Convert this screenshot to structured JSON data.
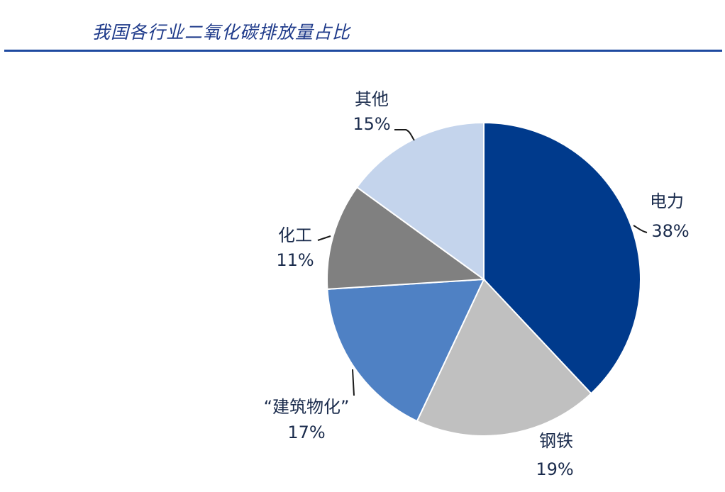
{
  "title": "我国各行业二氧化碳排放量占比",
  "colors": {
    "title": "#1e3a8a",
    "rule": "#1f4aa0",
    "label": "#1a2b4c",
    "leader": "#1a1a1a"
  },
  "chart_data": {
    "type": "pie",
    "title": "我国各行业二氧化碳排放量占比",
    "start_angle_deg": 0,
    "direction": "clockwise",
    "legend": "none",
    "slices": [
      {
        "name": "电力",
        "value": 38,
        "label": "38%",
        "color": "#003a8c"
      },
      {
        "name": "钢铁",
        "value": 19,
        "label": "19%",
        "color": "#c0c0c0"
      },
      {
        "name": "“建筑物化”",
        "value": 17,
        "label": "17%",
        "color": "#4f81c4"
      },
      {
        "name": "化工",
        "value": 11,
        "label": "11%",
        "color": "#808080"
      },
      {
        "name": "其他",
        "value": 15,
        "label": "15%",
        "color": "#c4d4ec"
      }
    ]
  }
}
